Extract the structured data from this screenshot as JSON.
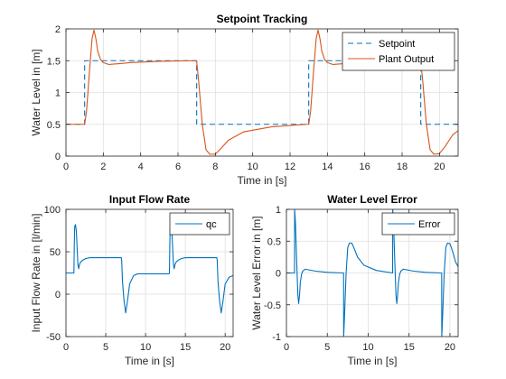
{
  "figure": {
    "background": "#ffffff"
  },
  "chart_data": [
    {
      "type": "line",
      "title": "Setpoint Tracking",
      "xlabel": "Time in [s]",
      "ylabel": "Water Level in [m]",
      "xlim": [
        0,
        21
      ],
      "ylim": [
        0,
        2
      ],
      "xticks": [
        0,
        2,
        4,
        6,
        8,
        10,
        12,
        14,
        16,
        18,
        20
      ],
      "yticks": [
        0,
        0.5,
        1,
        1.5,
        2
      ],
      "xtick_labels": [
        "0",
        "2",
        "4",
        "6",
        "8",
        "10",
        "12",
        "14",
        "16",
        "18",
        "20"
      ],
      "ytick_labels": [
        "0",
        "0.5",
        "1",
        "1.5",
        "2"
      ],
      "grid": true,
      "legend": "top-right",
      "series": [
        {
          "name": "Setpoint",
          "color": "#0072BD",
          "style": "dashed",
          "x": [
            0,
            1,
            1,
            7,
            7,
            13,
            13,
            19,
            19,
            21
          ],
          "y": [
            0.5,
            0.5,
            1.5,
            1.5,
            0.5,
            0.5,
            1.5,
            1.5,
            0.5,
            0.5
          ]
        },
        {
          "name": "Plant Output",
          "color": "#D95319",
          "style": "solid",
          "x": [
            0,
            1.0,
            1.1,
            1.25,
            1.4,
            1.5,
            1.6,
            1.7,
            1.85,
            2.0,
            2.3,
            2.7,
            3.5,
            5,
            6.9,
            7.0,
            7.1,
            7.3,
            7.5,
            7.7,
            8.0,
            8.3,
            8.7,
            9.5,
            11,
            12.9,
            13.0,
            13.1,
            13.25,
            13.4,
            13.5,
            13.6,
            13.7,
            13.85,
            14.0,
            14.3,
            14.7,
            15.5,
            17,
            18.9,
            19.0,
            19.1,
            19.3,
            19.5,
            19.7,
            20.0,
            20.3,
            20.7,
            21
          ],
          "y": [
            0.5,
            0.5,
            0.7,
            1.3,
            1.85,
            1.98,
            1.85,
            1.65,
            1.52,
            1.47,
            1.44,
            1.45,
            1.47,
            1.49,
            1.5,
            1.49,
            1.2,
            0.5,
            0.1,
            0.03,
            0.03,
            0.12,
            0.25,
            0.38,
            0.46,
            0.5,
            0.5,
            0.7,
            1.3,
            1.85,
            1.98,
            1.85,
            1.65,
            1.52,
            1.47,
            1.44,
            1.45,
            1.47,
            1.49,
            1.5,
            1.49,
            1.2,
            0.5,
            0.1,
            0.03,
            0.04,
            0.15,
            0.33,
            0.4
          ]
        }
      ]
    },
    {
      "type": "line",
      "title": "Input Flow Rate",
      "xlabel": "Time in [s]",
      "ylabel": "Input Flow Rate in [l/min]",
      "xlim": [
        0,
        21
      ],
      "ylim": [
        -50,
        100
      ],
      "xticks": [
        0,
        5,
        10,
        15,
        20
      ],
      "yticks": [
        -50,
        0,
        50,
        100
      ],
      "xtick_labels": [
        "0",
        "5",
        "10",
        "15",
        "20"
      ],
      "ytick_labels": [
        "-50",
        "0",
        "50",
        "100"
      ],
      "grid": true,
      "legend": "top-right",
      "series": [
        {
          "name": "qc",
          "color": "#0072BD",
          "style": "solid",
          "x": [
            0,
            1.0,
            1.05,
            1.1,
            1.2,
            1.3,
            1.4,
            1.5,
            1.6,
            1.7,
            1.85,
            2.1,
            2.5,
            3.0,
            6.95,
            7.0,
            7.1,
            7.3,
            7.5,
            7.7,
            8.0,
            8.5,
            9.0,
            12.95,
            13.0,
            13.05,
            13.1,
            13.2,
            13.3,
            13.4,
            13.5,
            13.6,
            13.7,
            13.85,
            14.1,
            14.5,
            15.0,
            18.95,
            19.0,
            19.1,
            19.3,
            19.5,
            19.7,
            20.0,
            20.5,
            21
          ],
          "y": [
            25,
            25,
            60,
            80,
            82,
            75,
            55,
            35,
            30,
            35,
            38,
            40,
            42,
            43,
            43,
            40,
            15,
            -8,
            -22,
            -10,
            12,
            22,
            24,
            24,
            25,
            60,
            80,
            82,
            75,
            55,
            35,
            30,
            35,
            38,
            40,
            42,
            43,
            43,
            40,
            15,
            -8,
            -22,
            -10,
            12,
            20,
            22
          ]
        }
      ]
    },
    {
      "type": "line",
      "title": "Water Level Error",
      "xlabel": "Time in [s]",
      "ylabel": "Water Level Error in [m]",
      "xlim": [
        0,
        21
      ],
      "ylim": [
        -1,
        1
      ],
      "xticks": [
        0,
        5,
        10,
        15,
        20
      ],
      "yticks": [
        -1,
        -0.5,
        0,
        0.5,
        1
      ],
      "xtick_labels": [
        "0",
        "5",
        "10",
        "15",
        "20"
      ],
      "ytick_labels": [
        "-1",
        "-0.5",
        "0",
        "0.5",
        "1"
      ],
      "grid": true,
      "legend": "top-right",
      "series": [
        {
          "name": "Error",
          "color": "#0072BD",
          "style": "solid",
          "x": [
            0,
            0.99,
            1.0,
            1.1,
            1.25,
            1.4,
            1.5,
            1.6,
            1.7,
            1.85,
            2.0,
            2.3,
            2.7,
            3.5,
            5,
            6.99,
            7.0,
            7.1,
            7.3,
            7.5,
            7.7,
            8.0,
            8.3,
            8.7,
            9.5,
            11,
            12.99,
            13.0,
            13.1,
            13.25,
            13.4,
            13.5,
            13.6,
            13.7,
            13.85,
            14.0,
            14.3,
            14.7,
            15.5,
            17,
            18.99,
            19.0,
            19.1,
            19.3,
            19.5,
            19.7,
            20.0,
            20.3,
            20.7,
            21
          ],
          "y": [
            0,
            0,
            1.0,
            0.8,
            0.2,
            -0.35,
            -0.48,
            -0.35,
            -0.15,
            -0.02,
            0.03,
            0.06,
            0.05,
            0.03,
            0.01,
            0.0,
            -1.0,
            -0.7,
            0.0,
            0.4,
            0.47,
            0.47,
            0.38,
            0.25,
            0.12,
            0.04,
            0.0,
            1.0,
            0.8,
            0.2,
            -0.35,
            -0.48,
            -0.35,
            -0.15,
            -0.02,
            0.03,
            0.06,
            0.05,
            0.03,
            0.01,
            0.0,
            -1.0,
            -0.7,
            0.0,
            0.4,
            0.47,
            0.46,
            0.35,
            0.17,
            0.1
          ]
        }
      ]
    }
  ]
}
